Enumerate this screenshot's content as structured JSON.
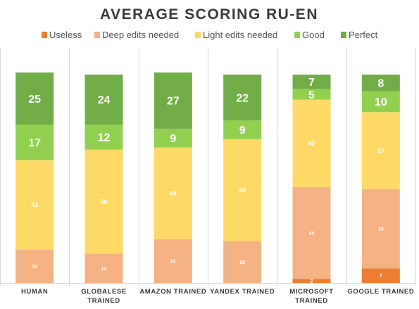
{
  "chart_data": {
    "type": "bar",
    "stacked": true,
    "title": "AVERAGE SCORING RU-EN",
    "xlabel": "",
    "ylabel": "",
    "ylim": [
      0,
      100
    ],
    "grid": false,
    "legend_position": "top",
    "categories": [
      [
        "HUMAN"
      ],
      [
        "GLOBALESE",
        "TRAINED"
      ],
      [
        "AMAZON TRAINED"
      ],
      [
        "YANDEX TRAINED"
      ],
      [
        "MICROSOFT",
        "TRAINED"
      ],
      [
        "GOOGLE TRAINED"
      ]
    ],
    "series": [
      {
        "name": "Useless",
        "color": "#ed7d31",
        "values": [
          0,
          0,
          0,
          0,
          2,
          7
        ]
      },
      {
        "name": "Deep edits needed",
        "color": "#f4b183",
        "values": [
          16,
          14,
          21,
          20,
          44,
          38
        ]
      },
      {
        "name": "Light edits needed",
        "color": "#ffd966",
        "values": [
          43,
          50,
          44,
          49,
          42,
          37
        ]
      },
      {
        "name": "Good",
        "color": "#92d050",
        "values": [
          17,
          12,
          9,
          9,
          5,
          10
        ]
      },
      {
        "name": "Perfect",
        "color": "#70ad47",
        "values": [
          25,
          24,
          27,
          22,
          7,
          8
        ]
      }
    ]
  }
}
